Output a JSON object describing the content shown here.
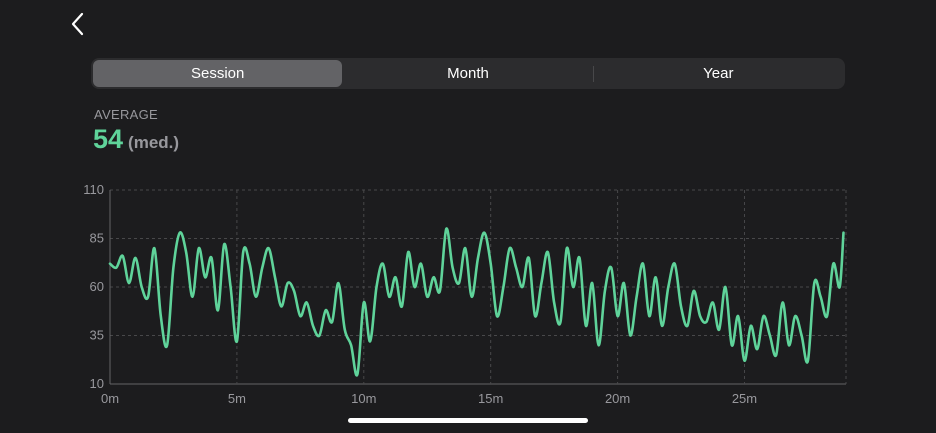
{
  "nav": {
    "back_icon": "chevron-left-icon"
  },
  "segments": [
    {
      "label": "Session",
      "selected": true
    },
    {
      "label": "Month",
      "selected": false
    },
    {
      "label": "Year",
      "selected": false
    }
  ],
  "summary": {
    "label": "AVERAGE",
    "value": "54",
    "unit": "(med.)"
  },
  "colors": {
    "accent": "#5fd39a",
    "background": "#1c1c1e",
    "segment_bg": "#2c2c2e",
    "segment_selected": "#636366",
    "grid": "#48484a",
    "axis_text": "#98989d"
  },
  "chart_data": {
    "type": "line",
    "title": "",
    "xlabel": "",
    "ylabel": "",
    "xlim": [
      0,
      29
    ],
    "ylim": [
      10,
      110
    ],
    "x_ticks": [
      {
        "value": 0,
        "label": "0m"
      },
      {
        "value": 5,
        "label": "5m"
      },
      {
        "value": 10,
        "label": "10m"
      },
      {
        "value": 15,
        "label": "15m"
      },
      {
        "value": 20,
        "label": "20m"
      },
      {
        "value": 25,
        "label": "25m"
      }
    ],
    "y_ticks": [
      {
        "value": 10,
        "label": "10"
      },
      {
        "value": 35,
        "label": "35"
      },
      {
        "value": 60,
        "label": "60"
      },
      {
        "value": 85,
        "label": "85"
      },
      {
        "value": 110,
        "label": "110"
      }
    ],
    "grid": true,
    "series": [
      {
        "color": "#5fd39a",
        "x": [
          0.0,
          0.25,
          0.5,
          0.75,
          1.0,
          1.25,
          1.5,
          1.75,
          2.0,
          2.25,
          2.5,
          2.75,
          3.0,
          3.25,
          3.5,
          3.75,
          4.0,
          4.25,
          4.5,
          4.75,
          5.0,
          5.25,
          5.5,
          5.75,
          6.0,
          6.25,
          6.5,
          6.75,
          7.0,
          7.25,
          7.5,
          7.75,
          8.0,
          8.25,
          8.5,
          8.75,
          9.0,
          9.25,
          9.5,
          9.75,
          10.0,
          10.25,
          10.5,
          10.75,
          11.0,
          11.25,
          11.5,
          11.75,
          12.0,
          12.25,
          12.5,
          12.75,
          13.0,
          13.25,
          13.5,
          13.75,
          14.0,
          14.25,
          14.5,
          14.75,
          15.0,
          15.25,
          15.5,
          15.75,
          16.0,
          16.25,
          16.5,
          16.75,
          17.0,
          17.25,
          17.5,
          17.75,
          18.0,
          18.25,
          18.5,
          18.75,
          19.0,
          19.25,
          19.5,
          19.75,
          20.0,
          20.25,
          20.5,
          20.75,
          21.0,
          21.25,
          21.5,
          21.75,
          22.0,
          22.25,
          22.5,
          22.75,
          23.0,
          23.25,
          23.5,
          23.75,
          24.0,
          24.25,
          24.5,
          24.75,
          25.0,
          25.25,
          25.5,
          25.75,
          26.0,
          26.25,
          26.5,
          26.75,
          27.0,
          27.25,
          27.5,
          27.75,
          28.0,
          28.25,
          28.5,
          28.75,
          28.9
        ],
        "y": [
          72,
          70,
          76,
          62,
          75,
          60,
          55,
          80,
          45,
          30,
          70,
          88,
          78,
          55,
          80,
          65,
          75,
          48,
          82,
          60,
          32,
          78,
          72,
          55,
          70,
          80,
          65,
          50,
          62,
          58,
          45,
          52,
          40,
          35,
          48,
          42,
          62,
          38,
          30,
          15,
          52,
          32,
          60,
          72,
          55,
          65,
          50,
          78,
          60,
          72,
          55,
          65,
          58,
          90,
          70,
          62,
          80,
          55,
          75,
          88,
          72,
          45,
          60,
          80,
          70,
          60,
          75,
          45,
          62,
          78,
          52,
          42,
          80,
          60,
          75,
          40,
          62,
          30,
          58,
          70,
          45,
          62,
          35,
          55,
          72,
          45,
          65,
          40,
          60,
          72,
          50,
          40,
          58,
          45,
          42,
          52,
          38,
          60,
          30,
          45,
          22,
          40,
          28,
          45,
          35,
          25,
          52,
          30,
          45,
          35,
          22,
          62,
          55,
          45,
          72,
          60,
          88
        ]
      }
    ]
  }
}
